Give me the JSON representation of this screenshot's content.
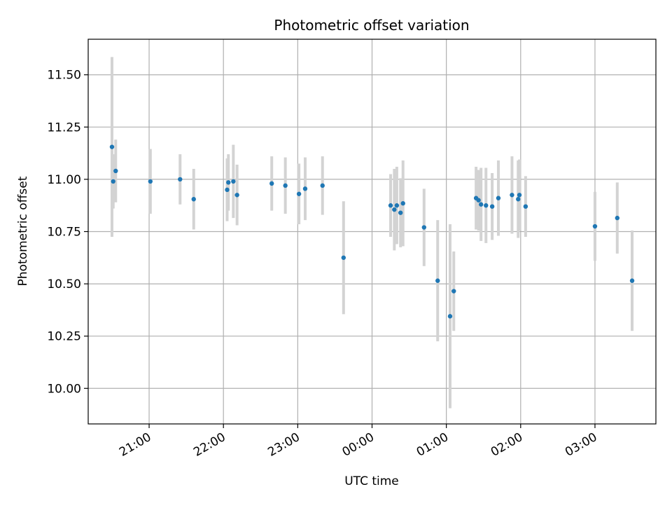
{
  "chart_data": {
    "type": "scatter",
    "title": "Photometric offset variation",
    "xlabel": "UTC time",
    "ylabel": "Photometric offset",
    "x_tick_labels": [
      "21:00",
      "22:00",
      "23:00",
      "00:00",
      "01:00",
      "02:00",
      "03:00"
    ],
    "x_tick_hours": [
      21,
      22,
      23,
      24,
      25,
      26,
      27
    ],
    "y_tick_labels": [
      "10.00",
      "10.25",
      "10.50",
      "10.75",
      "11.00",
      "11.25",
      "11.50"
    ],
    "y_tick_values": [
      10.0,
      10.25,
      10.5,
      10.75,
      11.0,
      11.25,
      11.5
    ],
    "xlim_hours": [
      20.18,
      27.82
    ],
    "ylim": [
      9.83,
      11.67
    ],
    "grid": true,
    "series": [
      {
        "marker_color": "#1f77b4",
        "errorbar_color": "#d3d3d3",
        "points": [
          {
            "t": "20:30",
            "y": 11.155,
            "err": 0.43
          },
          {
            "t": "20:31",
            "y": 10.99,
            "err": 0.13
          },
          {
            "t": "20:33",
            "y": 11.04,
            "err": 0.15
          },
          {
            "t": "21:01",
            "y": 10.99,
            "err": 0.155
          },
          {
            "t": "21:25",
            "y": 11.0,
            "err": 0.12
          },
          {
            "t": "21:36",
            "y": 10.905,
            "err": 0.145
          },
          {
            "t": "22:03",
            "y": 10.95,
            "err": 0.15
          },
          {
            "t": "22:04",
            "y": 10.985,
            "err": 0.135
          },
          {
            "t": "22:08",
            "y": 10.99,
            "err": 0.175
          },
          {
            "t": "22:11",
            "y": 10.925,
            "err": 0.145
          },
          {
            "t": "22:39",
            "y": 10.98,
            "err": 0.13
          },
          {
            "t": "22:50",
            "y": 10.97,
            "err": 0.135
          },
          {
            "t": "23:01",
            "y": 10.93,
            "err": 0.145
          },
          {
            "t": "23:06",
            "y": 10.955,
            "err": 0.15
          },
          {
            "t": "23:20",
            "y": 10.97,
            "err": 0.14
          },
          {
            "t": "23:37",
            "y": 10.625,
            "err": 0.27
          },
          {
            "t": "00:15",
            "y": 10.875,
            "err": 0.15
          },
          {
            "t": "00:18",
            "y": 10.855,
            "err": 0.195
          },
          {
            "t": "00:20",
            "y": 10.875,
            "err": 0.185
          },
          {
            "t": "00:23",
            "y": 10.84,
            "err": 0.165
          },
          {
            "t": "00:25",
            "y": 10.885,
            "err": 0.205
          },
          {
            "t": "00:42",
            "y": 10.77,
            "err": 0.185
          },
          {
            "t": "00:53",
            "y": 10.515,
            "err": 0.29
          },
          {
            "t": "01:03",
            "y": 10.345,
            "err": 0.44
          },
          {
            "t": "01:06",
            "y": 10.465,
            "err": 0.19
          },
          {
            "t": "01:24",
            "y": 10.91,
            "err": 0.15
          },
          {
            "t": "01:26",
            "y": 10.9,
            "err": 0.145
          },
          {
            "t": "01:28",
            "y": 10.88,
            "err": 0.175
          },
          {
            "t": "01:32",
            "y": 10.875,
            "err": 0.18
          },
          {
            "t": "01:37",
            "y": 10.87,
            "err": 0.16
          },
          {
            "t": "01:42",
            "y": 10.91,
            "err": 0.18
          },
          {
            "t": "01:53",
            "y": 10.925,
            "err": 0.185
          },
          {
            "t": "01:58",
            "y": 10.905,
            "err": 0.185
          },
          {
            "t": "01:59",
            "y": 10.925,
            "err": 0.17
          },
          {
            "t": "02:04",
            "y": 10.87,
            "err": 0.145
          },
          {
            "t": "03:00",
            "y": 10.775,
            "err": 0.165
          },
          {
            "t": "03:18",
            "y": 10.815,
            "err": 0.17
          },
          {
            "t": "03:30",
            "y": 10.515,
            "err": 0.24
          }
        ]
      }
    ]
  }
}
